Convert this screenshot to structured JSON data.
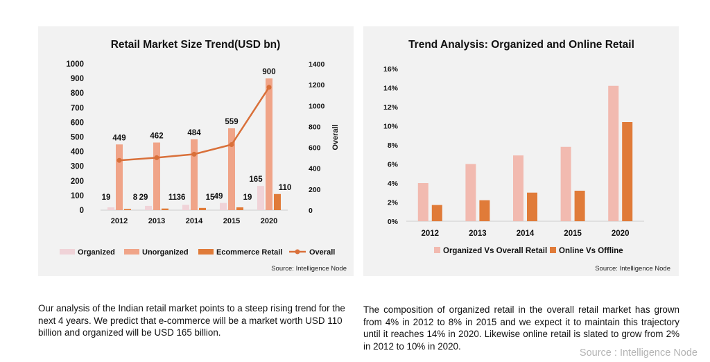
{
  "chart_data": [
    {
      "type": "bar",
      "title": "Retail Market Size Trend(USD bn)",
      "categories": [
        "2012",
        "2013",
        "2014",
        "2015",
        "2020"
      ],
      "series": [
        {
          "name": "Organized",
          "values": [
            19,
            29,
            36,
            49,
            165
          ],
          "color": "#f0d3d8"
        },
        {
          "name": "Unorganized",
          "values": [
            449,
            462,
            484,
            559,
            900
          ],
          "color": "#f0a488"
        },
        {
          "name": "Ecommerce Retail",
          "values": [
            8,
            11,
            15,
            19,
            110
          ],
          "color": "#e07b39"
        },
        {
          "name": "Overall",
          "type": "line",
          "axis": "secondary",
          "values": [
            476,
            502,
            535,
            627,
            1175
          ],
          "color": "#d9703a"
        }
      ],
      "ylim": [
        0,
        1000
      ],
      "yticks": [
        "1000",
        "900",
        "800",
        "700",
        "600",
        "500",
        "400",
        "300",
        "200",
        "100",
        "0"
      ],
      "y2lim": [
        0,
        1400
      ],
      "y2ticks": [
        "1400",
        "1200",
        "1000",
        "800",
        "600",
        "400",
        "200",
        "0"
      ],
      "y2label": "Overall",
      "source": "Source: Intelligence Node",
      "legend_position": "bottom",
      "grid": false
    },
    {
      "type": "bar",
      "title": "Trend Analysis: Organized and Online Retail",
      "categories": [
        "2012",
        "2013",
        "2014",
        "2015",
        "2020"
      ],
      "series": [
        {
          "name": "Organized Vs Overall Retail",
          "values": [
            4,
            6,
            6.9,
            7.8,
            14.2
          ],
          "color": "#f2bab0"
        },
        {
          "name": "Online Vs Offline",
          "values": [
            1.7,
            2.2,
            3.0,
            3.2,
            10.4
          ],
          "color": "#e07b39"
        }
      ],
      "ylim": [
        0,
        16
      ],
      "yticks": [
        "16%",
        "14%",
        "12%",
        "10%",
        "8%",
        "6%",
        "4%",
        "2%",
        "0%"
      ],
      "source": "Source: Intelligence Node",
      "legend_position": "bottom",
      "grid": false
    }
  ],
  "descriptions": {
    "left": "Our analysis of the Indian retail market points to a steep rising trend for the next 4 years. We predict that e-commerce will be a market worth USD 110 billion and organized will be USD 165 billion.",
    "right": "The composition of organized retail in the overall retail market has grown from 4% in 2012 to 8% in 2015 and we expect it to maintain this trajectory until it reaches 14% in 2020. Likewise online retail is slated to grow from 2% in 2012 to 10% in 2020."
  },
  "footer_source": "Source : Intelligence Node"
}
